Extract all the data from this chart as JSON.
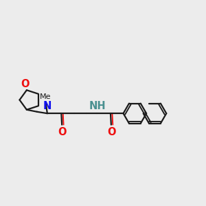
{
  "bg_color": "#ececec",
  "bond_color": "#1a1a1a",
  "N_color": "#1010ee",
  "O_color": "#ee1010",
  "NH_color": "#4a9090",
  "line_width": 1.6,
  "font_size": 9.5,
  "fig_w": 3.0,
  "fig_h": 3.0,
  "dpi": 100,
  "xlim": [
    0,
    10
  ],
  "ylim": [
    2,
    8
  ]
}
